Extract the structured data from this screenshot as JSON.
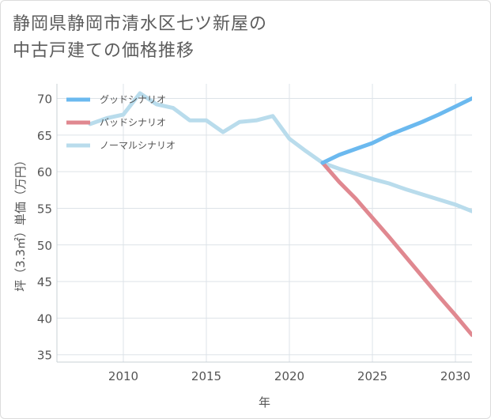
{
  "title_lines": [
    "静岡県静岡市清水区七ツ新屋の",
    "中古戸建ての価格推移"
  ],
  "chart_data": {
    "type": "line",
    "xlabel": "年",
    "ylabel": "坪（3.3㎡）単価（万円）",
    "xlim": [
      2006,
      2031
    ],
    "ylim": [
      34,
      72
    ],
    "x_ticks": [
      2010,
      2015,
      2020,
      2025,
      2030
    ],
    "y_ticks": [
      35,
      40,
      45,
      50,
      55,
      60,
      65,
      70
    ],
    "grid": true,
    "legend_position": "top-left",
    "series": [
      {
        "name": "グッドシナリオ",
        "color": "#6bb9ef",
        "x": [
          2022,
          2023,
          2024,
          2025,
          2026,
          2027,
          2028,
          2029,
          2030,
          2031
        ],
        "y": [
          61.2,
          62.3,
          63.1,
          63.9,
          65.0,
          65.9,
          66.8,
          67.8,
          68.9,
          70.0
        ]
      },
      {
        "name": "バッドシナリオ",
        "color": "#e08890",
        "x": [
          2022,
          2023,
          2024,
          2025,
          2026,
          2027,
          2028,
          2029,
          2030,
          2031
        ],
        "y": [
          61.2,
          58.6,
          56.3,
          53.7,
          51.1,
          48.4,
          45.7,
          43.0,
          40.4,
          37.7
        ]
      },
      {
        "name": "ノーマルシナリオ",
        "color": "#b9dcec",
        "x": [
          2008,
          2009,
          2010,
          2011,
          2012,
          2013,
          2014,
          2015,
          2016,
          2017,
          2018,
          2019,
          2020,
          2021,
          2022,
          2023,
          2024,
          2025,
          2026,
          2027,
          2028,
          2029,
          2030,
          2031
        ],
        "y": [
          66.5,
          67.3,
          67.8,
          70.7,
          69.2,
          68.7,
          67.0,
          67.0,
          65.4,
          66.8,
          67.0,
          67.6,
          64.5,
          62.8,
          61.2,
          60.4,
          59.7,
          59.0,
          58.4,
          57.6,
          56.9,
          56.2,
          55.5,
          54.6
        ]
      }
    ]
  }
}
